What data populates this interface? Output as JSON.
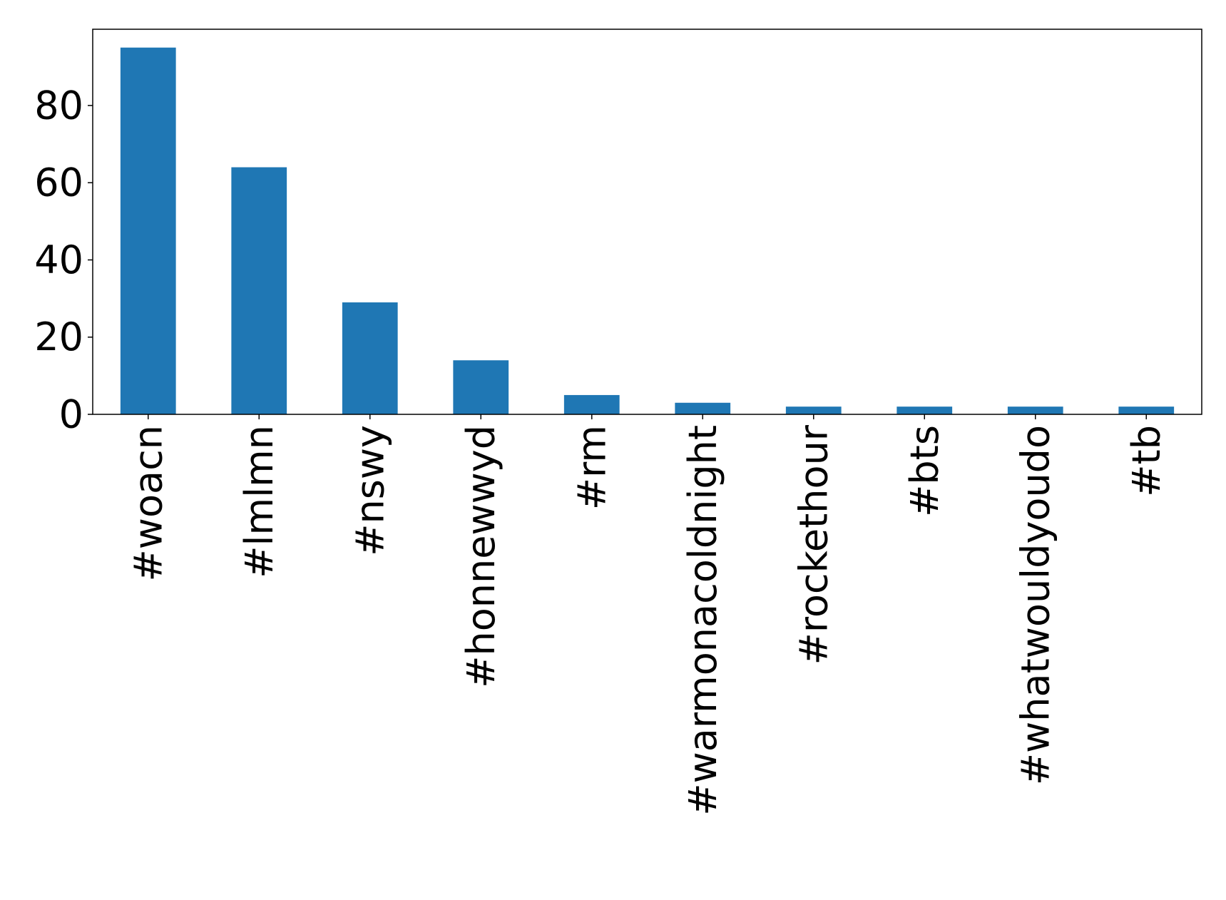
{
  "chart_data": {
    "type": "bar",
    "categories": [
      "#woacn",
      "#lmlmn",
      "#nswy",
      "#honnewwyd",
      "#rm",
      "#warmonacoldnight",
      "#rockethour",
      "#bts",
      "#whatwouldyoudo",
      "#tb"
    ],
    "values": [
      95,
      64,
      29,
      14,
      5,
      3,
      2,
      2,
      2,
      2
    ],
    "yticks": [
      0,
      20,
      40,
      60,
      80
    ],
    "ylim": [
      0,
      99.75
    ],
    "title": "",
    "xlabel": "",
    "ylabel": "",
    "grid": false,
    "legend": "none",
    "bar_color": "#1f77b4",
    "x_tick_rotation": "vertical"
  }
}
